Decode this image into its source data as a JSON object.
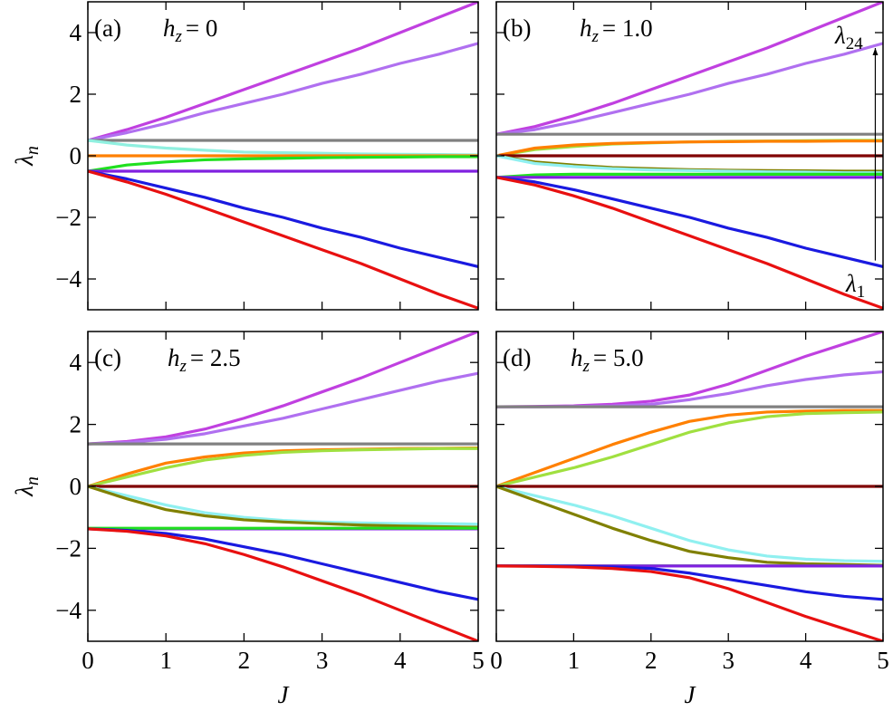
{
  "chart_data": [
    {
      "type": "line",
      "panel": "(a)",
      "title": "h",
      "title_sub": "z",
      "title_value": "= 0",
      "ylabel": "λ",
      "ylabel_sub": "n",
      "show_xticklabels": false,
      "show_yticklabels": true,
      "x": [
        0,
        0.5,
        1,
        1.5,
        2,
        2.5,
        3,
        3.5,
        4,
        4.5,
        5
      ],
      "xlim": [
        0,
        5
      ],
      "xticks": [
        0,
        1,
        2,
        3,
        4,
        5
      ],
      "ylim": [
        -5,
        5
      ],
      "yticks": [
        {
          "value": -4,
          "label": "−4"
        },
        {
          "value": -2,
          "label": "−2"
        },
        0,
        2,
        4
      ],
      "series": [
        {
          "color": "#c040e0",
          "values": [
            0.5,
            0.85,
            1.25,
            1.7,
            2.15,
            2.6,
            3.05,
            3.5,
            4.0,
            4.5,
            5.0
          ]
        },
        {
          "color": "#b070f0",
          "values": [
            0.5,
            0.75,
            1.05,
            1.4,
            1.7,
            2.0,
            2.35,
            2.65,
            3.0,
            3.3,
            3.65
          ]
        },
        {
          "color": "#808080",
          "values": [
            0.5,
            0.5,
            0.5,
            0.5,
            0.5,
            0.5,
            0.5,
            0.5,
            0.5,
            0.5,
            0.5
          ]
        },
        {
          "color": "#90f0e0",
          "values": [
            0.5,
            0.35,
            0.25,
            0.18,
            0.12,
            0.1,
            0.08,
            0.06,
            0.05,
            0.04,
            0.03
          ]
        },
        {
          "color": "#ff8000",
          "values": [
            0,
            0,
            0,
            0,
            0,
            0,
            0,
            0,
            0,
            0,
            0
          ]
        },
        {
          "color": "#20e020",
          "values": [
            -0.5,
            -0.3,
            -0.2,
            -0.13,
            -0.1,
            -0.08,
            -0.06,
            -0.05,
            -0.04,
            -0.03,
            -0.03
          ]
        },
        {
          "color": "#8020e0",
          "values": [
            -0.5,
            -0.5,
            -0.5,
            -0.5,
            -0.5,
            -0.5,
            -0.5,
            -0.5,
            -0.5,
            -0.5,
            -0.5
          ]
        },
        {
          "color": "#1a1ae0",
          "values": [
            -0.5,
            -0.75,
            -1.05,
            -1.35,
            -1.7,
            -2.0,
            -2.35,
            -2.65,
            -3.0,
            -3.3,
            -3.6
          ]
        },
        {
          "color": "#e81010",
          "values": [
            -0.5,
            -0.85,
            -1.25,
            -1.7,
            -2.15,
            -2.6,
            -3.05,
            -3.5,
            -4.0,
            -4.5,
            -4.95
          ]
        }
      ]
    },
    {
      "type": "line",
      "panel": "(b)",
      "title": "h",
      "title_sub": "z",
      "title_value": "= 1.0",
      "show_xticklabels": false,
      "show_yticklabels": false,
      "annotations": [
        {
          "text": "λ",
          "sub": "24"
        },
        {
          "text": "λ",
          "sub": "1"
        }
      ],
      "x": [
        0,
        0.5,
        1,
        1.5,
        2,
        2.5,
        3,
        3.5,
        4,
        4.5,
        5
      ],
      "xlim": [
        0,
        5
      ],
      "xticks": [
        0,
        1,
        2,
        3,
        4,
        5
      ],
      "ylim": [
        -5,
        5
      ],
      "yticks": [
        -4,
        -2,
        0,
        2,
        4
      ],
      "series": [
        {
          "color": "#c040e0",
          "values": [
            0.7,
            0.95,
            1.3,
            1.7,
            2.15,
            2.6,
            3.05,
            3.5,
            4.0,
            4.5,
            5.0
          ]
        },
        {
          "color": "#b070f0",
          "values": [
            0.7,
            0.85,
            1.1,
            1.4,
            1.7,
            2.0,
            2.35,
            2.65,
            3.0,
            3.3,
            3.65
          ]
        },
        {
          "color": "#808080",
          "values": [
            0.7,
            0.7,
            0.7,
            0.7,
            0.7,
            0.7,
            0.7,
            0.7,
            0.7,
            0.7,
            0.7
          ]
        },
        {
          "color": "#a0e040",
          "values": [
            0,
            0.2,
            0.3,
            0.38,
            0.42,
            0.45,
            0.47,
            0.48,
            0.49,
            0.5,
            0.5
          ]
        },
        {
          "color": "#ff8000",
          "values": [
            0,
            0.25,
            0.35,
            0.4,
            0.43,
            0.45,
            0.46,
            0.47,
            0.47,
            0.48,
            0.48
          ]
        },
        {
          "color": "#800000",
          "values": [
            0,
            0,
            0,
            0,
            0,
            0,
            0,
            0,
            0,
            0,
            0
          ]
        },
        {
          "color": "#808000",
          "values": [
            0,
            -0.2,
            -0.3,
            -0.38,
            -0.42,
            -0.45,
            -0.47,
            -0.48,
            -0.49,
            -0.5,
            -0.5
          ]
        },
        {
          "color": "#90f0f0",
          "values": [
            0,
            -0.25,
            -0.35,
            -0.42,
            -0.46,
            -0.48,
            -0.5,
            -0.52,
            -0.53,
            -0.55,
            -0.55
          ]
        },
        {
          "color": "#20e020",
          "values": [
            -0.7,
            -0.62,
            -0.6,
            -0.6,
            -0.6,
            -0.6,
            -0.6,
            -0.6,
            -0.6,
            -0.6,
            -0.6
          ]
        },
        {
          "color": "#8020e0",
          "values": [
            -0.7,
            -0.7,
            -0.7,
            -0.7,
            -0.7,
            -0.7,
            -0.7,
            -0.7,
            -0.7,
            -0.7,
            -0.7
          ]
        },
        {
          "color": "#1a1ae0",
          "values": [
            -0.7,
            -0.85,
            -1.1,
            -1.4,
            -1.7,
            -2.0,
            -2.35,
            -2.65,
            -3.0,
            -3.3,
            -3.6
          ]
        },
        {
          "color": "#e81010",
          "values": [
            -0.7,
            -0.95,
            -1.3,
            -1.7,
            -2.15,
            -2.6,
            -3.05,
            -3.5,
            -4.0,
            -4.5,
            -4.95
          ]
        }
      ]
    },
    {
      "type": "line",
      "panel": "(c)",
      "title": "h",
      "title_sub": "z",
      "title_value": "= 2.5",
      "ylabel": "λ",
      "ylabel_sub": "n",
      "xlabel": "J",
      "show_xticklabels": true,
      "show_yticklabels": true,
      "x": [
        0,
        0.5,
        1,
        1.5,
        2,
        2.5,
        3,
        3.5,
        4,
        4.5,
        5
      ],
      "xlim": [
        0,
        5
      ],
      "xticks": [
        0,
        1,
        2,
        3,
        4,
        5
      ],
      "ylim": [
        -5,
        5
      ],
      "yticks": [
        {
          "value": -4,
          "label": "−4"
        },
        {
          "value": -2,
          "label": "−2"
        },
        0,
        2,
        4
      ],
      "series": [
        {
          "color": "#c040e0",
          "values": [
            1.37,
            1.45,
            1.6,
            1.85,
            2.2,
            2.6,
            3.05,
            3.5,
            4.0,
            4.5,
            5.0
          ]
        },
        {
          "color": "#b070f0",
          "values": [
            1.37,
            1.42,
            1.52,
            1.7,
            1.95,
            2.2,
            2.5,
            2.8,
            3.1,
            3.4,
            3.65
          ]
        },
        {
          "color": "#808080",
          "values": [
            1.37,
            1.37,
            1.37,
            1.37,
            1.37,
            1.37,
            1.37,
            1.37,
            1.37,
            1.37,
            1.37
          ]
        },
        {
          "color": "#ff8000",
          "values": [
            0,
            0.4,
            0.75,
            0.95,
            1.08,
            1.15,
            1.18,
            1.2,
            1.22,
            1.23,
            1.24
          ]
        },
        {
          "color": "#a0e040",
          "values": [
            0,
            0.3,
            0.6,
            0.85,
            1.0,
            1.1,
            1.15,
            1.18,
            1.2,
            1.22,
            1.22
          ]
        },
        {
          "color": "#800000",
          "values": [
            0,
            0,
            0,
            0,
            0,
            0,
            0,
            0,
            0,
            0,
            0
          ]
        },
        {
          "color": "#90f0f0",
          "values": [
            0,
            -0.3,
            -0.6,
            -0.85,
            -1.0,
            -1.1,
            -1.15,
            -1.18,
            -1.2,
            -1.2,
            -1.22
          ]
        },
        {
          "color": "#808000",
          "values": [
            0,
            -0.4,
            -0.75,
            -0.95,
            -1.08,
            -1.15,
            -1.2,
            -1.25,
            -1.28,
            -1.3,
            -1.32
          ]
        },
        {
          "color": "#8020e0",
          "values": [
            -1.37,
            -1.37,
            -1.37,
            -1.37,
            -1.37,
            -1.37,
            -1.37,
            -1.37,
            -1.37,
            -1.37,
            -1.37
          ]
        },
        {
          "color": "#20e020",
          "values": [
            -1.35,
            -1.35,
            -1.35,
            -1.35,
            -1.35,
            -1.35,
            -1.35,
            -1.35,
            -1.35,
            -1.35,
            -1.35
          ]
        },
        {
          "color": "#1a1ae0",
          "values": [
            -1.37,
            -1.42,
            -1.52,
            -1.7,
            -1.95,
            -2.2,
            -2.5,
            -2.8,
            -3.1,
            -3.4,
            -3.65
          ]
        },
        {
          "color": "#e81010",
          "values": [
            -1.37,
            -1.45,
            -1.6,
            -1.85,
            -2.2,
            -2.6,
            -3.05,
            -3.5,
            -4.0,
            -4.5,
            -5.0
          ]
        }
      ]
    },
    {
      "type": "line",
      "panel": "(d)",
      "title": "h",
      "title_sub": "z",
      "title_value": "= 5.0",
      "xlabel": "J",
      "show_xticklabels": true,
      "show_yticklabels": false,
      "x": [
        0,
        0.5,
        1,
        1.5,
        2,
        2.5,
        3,
        3.5,
        4,
        4.5,
        5
      ],
      "xlim": [
        0,
        5
      ],
      "xticks": [
        0,
        1,
        2,
        3,
        4,
        5
      ],
      "ylim": [
        -5,
        5
      ],
      "yticks": [
        -4,
        -2,
        0,
        2,
        4
      ],
      "series": [
        {
          "color": "#c040e0",
          "values": [
            2.57,
            2.58,
            2.6,
            2.65,
            2.75,
            2.95,
            3.3,
            3.75,
            4.2,
            4.6,
            5.0
          ]
        },
        {
          "color": "#b070f0",
          "values": [
            2.57,
            2.57,
            2.58,
            2.6,
            2.65,
            2.8,
            3.0,
            3.25,
            3.45,
            3.6,
            3.7
          ]
        },
        {
          "color": "#808080",
          "values": [
            2.57,
            2.57,
            2.57,
            2.57,
            2.57,
            2.57,
            2.57,
            2.57,
            2.57,
            2.57,
            2.57
          ]
        },
        {
          "color": "#ff8000",
          "values": [
            0,
            0.45,
            0.9,
            1.35,
            1.75,
            2.1,
            2.3,
            2.4,
            2.43,
            2.45,
            2.45
          ]
        },
        {
          "color": "#a0e040",
          "values": [
            0,
            0.3,
            0.6,
            0.95,
            1.35,
            1.75,
            2.05,
            2.25,
            2.35,
            2.38,
            2.4
          ]
        },
        {
          "color": "#800000",
          "values": [
            0,
            0,
            0,
            0,
            0,
            0,
            0,
            0,
            0,
            0,
            0
          ]
        },
        {
          "color": "#90f0f0",
          "values": [
            0,
            -0.3,
            -0.6,
            -0.95,
            -1.35,
            -1.75,
            -2.05,
            -2.25,
            -2.35,
            -2.4,
            -2.42
          ]
        },
        {
          "color": "#808000",
          "values": [
            0,
            -0.45,
            -0.9,
            -1.35,
            -1.75,
            -2.1,
            -2.3,
            -2.45,
            -2.5,
            -2.52,
            -2.55
          ]
        },
        {
          "color": "#20e020",
          "values": [
            -2.57,
            -2.57,
            -2.57,
            -2.57,
            -2.57,
            -2.57,
            -2.57,
            -2.57,
            -2.57,
            -2.57,
            -2.57
          ]
        },
        {
          "color": "#8020e0",
          "values": [
            -2.57,
            -2.57,
            -2.57,
            -2.57,
            -2.57,
            -2.57,
            -2.57,
            -2.57,
            -2.57,
            -2.57,
            -2.57
          ]
        },
        {
          "color": "#1a1ae0",
          "values": [
            -2.57,
            -2.57,
            -2.58,
            -2.6,
            -2.65,
            -2.8,
            -3.0,
            -3.2,
            -3.4,
            -3.55,
            -3.65
          ]
        },
        {
          "color": "#e81010",
          "values": [
            -2.57,
            -2.58,
            -2.6,
            -2.65,
            -2.75,
            -2.95,
            -3.3,
            -3.75,
            -4.2,
            -4.6,
            -5.0
          ]
        }
      ]
    }
  ]
}
